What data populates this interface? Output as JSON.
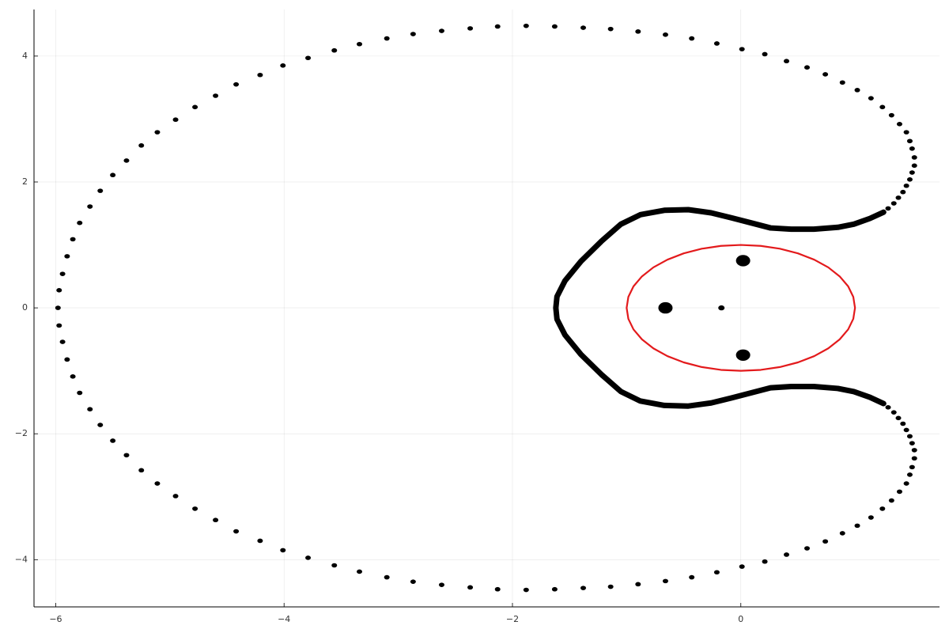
{
  "chart_data": {
    "type": "scatter",
    "xlim": [
      -6.19,
      1.74
    ],
    "ylim": [
      -4.75,
      4.74
    ],
    "xticks": [
      {
        "value": -6,
        "label": "−6"
      },
      {
        "value": -4,
        "label": "−4"
      },
      {
        "value": -2,
        "label": "−2"
      },
      0
    ],
    "yticks": [
      {
        "value": -4,
        "label": "−4"
      },
      {
        "value": -2,
        "label": "−2"
      },
      0,
      2,
      4
    ],
    "grid": true,
    "series": [
      {
        "mode": "markers",
        "color": "#000000",
        "marker_size": 3.5,
        "x": [
          -5.98,
          -5.97,
          -5.94,
          -5.9,
          -5.85,
          -5.79,
          -5.7,
          -5.61,
          -5.5,
          -5.38,
          -5.25,
          -5.11,
          -4.95,
          -4.78,
          -4.6,
          -4.42,
          -4.21,
          -4.01,
          -3.79,
          -3.56,
          -3.34,
          -3.1,
          -2.87,
          -2.62,
          -2.37,
          -2.13,
          -1.88,
          -1.63,
          -1.38,
          -1.14,
          -0.9,
          -0.66,
          -0.43,
          -0.21,
          0.01,
          0.21,
          0.4,
          0.58,
          0.74,
          0.89,
          1.02,
          1.14,
          1.24,
          1.32,
          1.39,
          1.45,
          1.48,
          1.5,
          1.52,
          1.52,
          1.5,
          1.48,
          1.45,
          1.42,
          1.38,
          1.34,
          1.29,
          1.25,
          -5.97,
          -5.94,
          -5.9,
          -5.85,
          -5.79,
          -5.7,
          -5.61,
          -5.5,
          -5.38,
          -5.25,
          -5.11,
          -4.95,
          -4.78,
          -4.6,
          -4.42,
          -4.21,
          -4.01,
          -3.79,
          -3.56,
          -3.34,
          -3.1,
          -2.87,
          -2.62,
          -2.37,
          -2.13,
          -1.88,
          -1.63,
          -1.38,
          -1.14,
          -0.9,
          -0.66,
          -0.43,
          -0.21,
          0.01,
          0.21,
          0.4,
          0.58,
          0.74,
          0.89,
          1.02,
          1.14,
          1.24,
          1.32,
          1.39,
          1.45,
          1.48,
          1.5,
          1.52,
          1.52,
          1.5,
          1.48,
          1.45,
          1.42,
          1.38,
          1.34,
          1.29,
          1.25
        ],
        "y": [
          0,
          0.28,
          0.54,
          0.82,
          1.09,
          1.35,
          1.61,
          1.86,
          2.11,
          2.34,
          2.58,
          2.79,
          2.99,
          3.19,
          3.37,
          3.55,
          3.7,
          3.85,
          3.97,
          4.09,
          4.19,
          4.28,
          4.35,
          4.4,
          4.44,
          4.47,
          4.48,
          4.47,
          4.45,
          4.43,
          4.39,
          4.34,
          4.28,
          4.2,
          4.11,
          4.03,
          3.92,
          3.82,
          3.71,
          3.58,
          3.46,
          3.33,
          3.19,
          3.06,
          2.92,
          2.79,
          2.65,
          2.53,
          2.39,
          2.26,
          2.15,
          2.04,
          1.94,
          1.84,
          1.75,
          1.66,
          1.58,
          1.52,
          -0.28,
          -0.54,
          -0.82,
          -1.09,
          -1.35,
          -1.61,
          -1.86,
          -2.11,
          -2.34,
          -2.58,
          -2.79,
          -2.99,
          -3.19,
          -3.37,
          -3.55,
          -3.7,
          -3.85,
          -3.97,
          -4.09,
          -4.19,
          -4.28,
          -4.35,
          -4.4,
          -4.44,
          -4.47,
          -4.48,
          -4.47,
          -4.45,
          -4.43,
          -4.39,
          -4.34,
          -4.28,
          -4.2,
          -4.11,
          -4.03,
          -3.92,
          -3.82,
          -3.71,
          -3.58,
          -3.46,
          -3.33,
          -3.19,
          -3.06,
          -2.92,
          -2.79,
          -2.65,
          -2.53,
          -2.39,
          -2.26,
          -2.15,
          -2.04,
          -1.94,
          -1.84,
          -1.75,
          -1.66,
          -1.58,
          -1.52
        ]
      },
      {
        "mode": "line",
        "color": "#000000",
        "line_width": 7,
        "x": [
          1.25,
          1.13,
          0.99,
          0.85,
          0.64,
          0.44,
          0.26,
          0.09,
          -0.08,
          -0.26,
          -0.46,
          -0.67,
          -0.88,
          -1.05,
          -1.22,
          -1.4,
          -1.54,
          -1.61,
          -1.62,
          -1.61,
          -1.54,
          -1.4,
          -1.22,
          -1.05,
          -0.88,
          -0.67,
          -0.46,
          -0.26,
          -0.08,
          0.09,
          0.26,
          0.44,
          0.64,
          0.85,
          0.99,
          1.13,
          1.25
        ],
        "y": [
          1.52,
          1.42,
          1.33,
          1.28,
          1.25,
          1.25,
          1.27,
          1.35,
          1.43,
          1.51,
          1.56,
          1.55,
          1.48,
          1.33,
          1.06,
          0.74,
          0.43,
          0.18,
          0,
          -0.18,
          -0.43,
          -0.74,
          -1.06,
          -1.33,
          -1.48,
          -1.55,
          -1.56,
          -1.51,
          -1.43,
          -1.35,
          -1.27,
          -1.25,
          -1.25,
          -1.28,
          -1.33,
          -1.42,
          -1.52
        ]
      },
      {
        "mode": "line",
        "color": "#e31a1c",
        "line_width": 2.2,
        "x": [
          1,
          0.985,
          0.94,
          0.866,
          0.766,
          0.643,
          0.5,
          0.342,
          0.174,
          0,
          -0.174,
          -0.342,
          -0.5,
          -0.643,
          -0.766,
          -0.866,
          -0.94,
          -0.985,
          -1,
          -0.985,
          -0.94,
          -0.866,
          -0.766,
          -0.643,
          -0.5,
          -0.342,
          -0.174,
          0,
          0.174,
          0.342,
          0.5,
          0.643,
          0.766,
          0.866,
          0.94,
          0.985,
          1
        ],
        "y": [
          0,
          0.174,
          0.342,
          0.5,
          0.643,
          0.766,
          0.866,
          0.94,
          0.985,
          1,
          0.985,
          0.94,
          0.866,
          0.766,
          0.643,
          0.5,
          0.342,
          0.174,
          0,
          -0.174,
          -0.342,
          -0.5,
          -0.643,
          -0.766,
          -0.866,
          -0.94,
          -0.985,
          -1,
          -0.985,
          -0.94,
          -0.866,
          -0.766,
          -0.643,
          -0.5,
          -0.342,
          -0.174,
          0
        ]
      },
      {
        "mode": "markers",
        "color": "#000000",
        "marker_size": 9,
        "x": [
          0.02,
          0.02,
          -0.66
        ],
        "y": [
          0.75,
          -0.75,
          0
        ]
      },
      {
        "mode": "markers",
        "color": "#000000",
        "marker_size": 4,
        "x": [
          -0.17
        ],
        "y": [
          0
        ]
      }
    ]
  }
}
